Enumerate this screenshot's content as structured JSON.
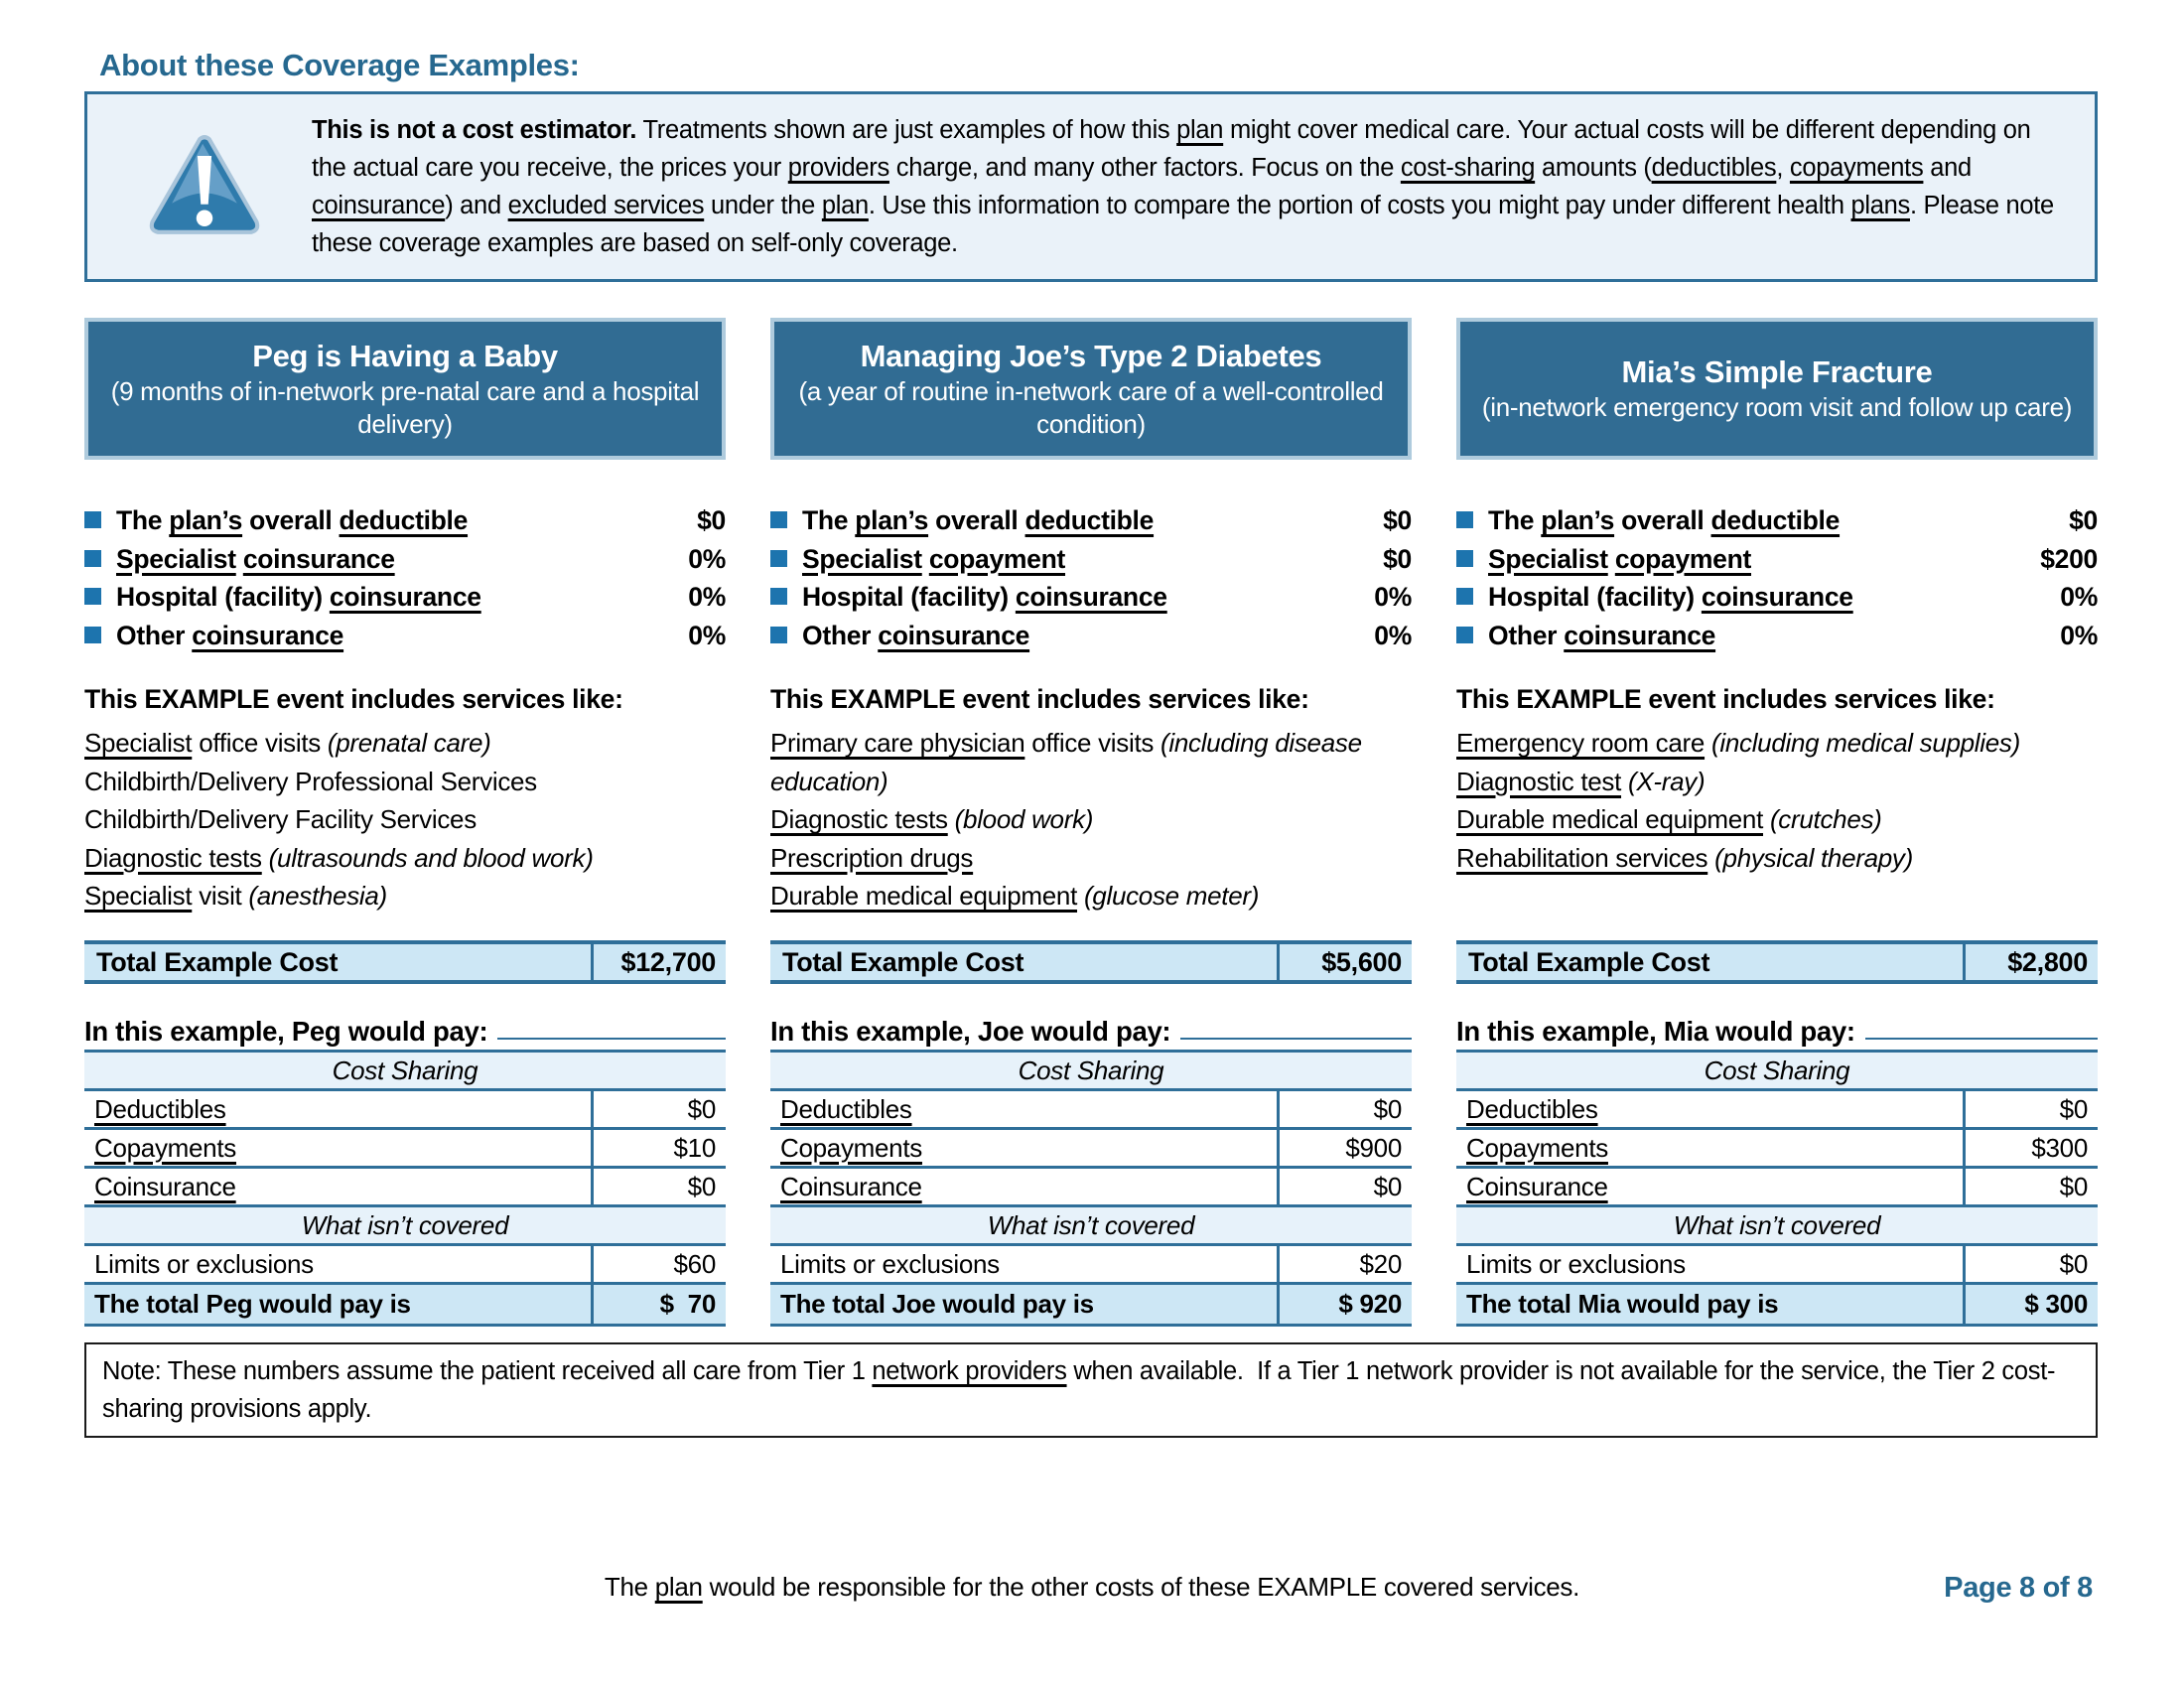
{
  "heading": "About these Coverage Examples:",
  "colors": {
    "accent_blue": "#2F6F99",
    "band_blue": "#316C93",
    "band_border": "#AFCBDD",
    "light_row_blue": "#CDE7F5",
    "section_row_blue": "#E7F2FA",
    "bullet_blue": "#1D74AE",
    "heading_blue": "#26688F",
    "warning_bg": "#EAF2F9"
  },
  "disclaimer": {
    "icon": "warning-triangle-icon",
    "segments": [
      {
        "t": "This is not a cost estimator.",
        "b": true
      },
      {
        "t": " Treatments shown are just examples of how this "
      },
      {
        "t": "plan",
        "u": true
      },
      {
        "t": " might cover medical care. Your actual costs will be different depending on the actual care you receive, the prices your "
      },
      {
        "t": "providers",
        "u": true
      },
      {
        "t": " charge, and many other factors. Focus on the "
      },
      {
        "t": "cost-sharing",
        "u": true
      },
      {
        "t": " amounts ("
      },
      {
        "t": "deductibles",
        "u": true
      },
      {
        "t": ", "
      },
      {
        "t": "copayments",
        "u": true
      },
      {
        "t": " and "
      },
      {
        "t": "coinsurance",
        "u": true
      },
      {
        "t": ") and "
      },
      {
        "t": "excluded services",
        "u": true
      },
      {
        "t": " under the "
      },
      {
        "t": "plan",
        "u": true
      },
      {
        "t": ". Use this information to compare the portion of costs you might pay under different health "
      },
      {
        "t": "plans",
        "u": true
      },
      {
        "t": ". Please note these coverage examples are based on self-only coverage."
      }
    ]
  },
  "examples": [
    {
      "title": "Peg is Having a Baby",
      "subtitle": "(9 months of in-network pre-natal care and a hospital delivery)",
      "plan_parameters": [
        {
          "label_segments": [
            {
              "t": "The "
            },
            {
              "t": "plan’s",
              "u": true
            },
            {
              "t": " overall "
            },
            {
              "t": "deductible",
              "u": true
            }
          ],
          "value": "$0"
        },
        {
          "label_segments": [
            {
              "t": "Specialist",
              "u": true
            },
            {
              "t": " "
            },
            {
              "t": "coinsurance",
              "u": true
            }
          ],
          "value": "0%"
        },
        {
          "label_segments": [
            {
              "t": "Hospital (facility) "
            },
            {
              "t": "coinsurance",
              "u": true
            }
          ],
          "value": "0%"
        },
        {
          "label_segments": [
            {
              "t": "Other "
            },
            {
              "t": "coinsurance",
              "u": true
            }
          ],
          "value": "0%"
        }
      ],
      "services_heading": "This EXAMPLE event includes services like:",
      "services": [
        {
          "segments": [
            {
              "t": "Specialist",
              "u": true
            },
            {
              "t": " office visits "
            },
            {
              "t": "(prenatal care)",
              "i": true
            }
          ]
        },
        {
          "segments": [
            {
              "t": "Childbirth/Delivery Professional Services"
            }
          ]
        },
        {
          "segments": [
            {
              "t": "Childbirth/Delivery Facility Services"
            }
          ]
        },
        {
          "segments": [
            {
              "t": "Diagnostic tests",
              "u": true
            },
            {
              "t": " "
            },
            {
              "t": "(ultrasounds and blood work)",
              "i": true
            }
          ]
        },
        {
          "segments": [
            {
              "t": "Specialist",
              "u": true
            },
            {
              "t": " visit "
            },
            {
              "t": "(anesthesia)",
              "i": true
            }
          ]
        }
      ],
      "total_label": "Total Example Cost",
      "total_value": "$12,700",
      "would_pay_heading": "In this example, Peg would pay:",
      "pay_table": [
        {
          "type": "section",
          "label": "Cost Sharing"
        },
        {
          "type": "row",
          "label": "Deductibles",
          "underline": true,
          "value": "$0"
        },
        {
          "type": "row",
          "label": "Copayments",
          "underline": true,
          "value": "$10"
        },
        {
          "type": "row",
          "label": "Coinsurance",
          "underline": true,
          "value": "$0"
        },
        {
          "type": "section",
          "label": "What isn’t covered"
        },
        {
          "type": "row",
          "label": "Limits or exclusions",
          "underline": false,
          "value": "$60"
        },
        {
          "type": "total",
          "label": "The total Peg would pay is",
          "value": "$  70"
        }
      ]
    },
    {
      "title": "Managing Joe’s Type 2 Diabetes",
      "subtitle": "(a year of routine in-network care of a well-controlled condition)",
      "plan_parameters": [
        {
          "label_segments": [
            {
              "t": "The "
            },
            {
              "t": "plan’s",
              "u": true
            },
            {
              "t": " overall "
            },
            {
              "t": "deductible",
              "u": true
            }
          ],
          "value": "$0"
        },
        {
          "label_segments": [
            {
              "t": "Specialist",
              "u": true
            },
            {
              "t": " "
            },
            {
              "t": "copayment",
              "u": true
            }
          ],
          "value": "$0"
        },
        {
          "label_segments": [
            {
              "t": "Hospital (facility) "
            },
            {
              "t": "coinsurance",
              "u": true
            }
          ],
          "value": "0%"
        },
        {
          "label_segments": [
            {
              "t": "Other "
            },
            {
              "t": "coinsurance",
              "u": true
            }
          ],
          "value": "0%"
        }
      ],
      "services_heading": "This EXAMPLE event includes services like:",
      "services": [
        {
          "segments": [
            {
              "t": "Primary care physician",
              "u": true
            },
            {
              "t": " office visits "
            },
            {
              "t": "(including disease education)",
              "i": true
            }
          ]
        },
        {
          "segments": [
            {
              "t": "Diagnostic tests",
              "u": true
            },
            {
              "t": " "
            },
            {
              "t": "(blood work)",
              "i": true
            }
          ]
        },
        {
          "segments": [
            {
              "t": "Prescription drugs",
              "u": true
            }
          ]
        },
        {
          "segments": [
            {
              "t": "Durable medical equipment",
              "u": true
            },
            {
              "t": " "
            },
            {
              "t": "(glucose meter)",
              "i": true
            }
          ]
        }
      ],
      "total_label": "Total Example Cost",
      "total_value": "$5,600",
      "would_pay_heading": "In this example, Joe would pay:",
      "pay_table": [
        {
          "type": "section",
          "label": "Cost Sharing"
        },
        {
          "type": "row",
          "label": "Deductibles",
          "underline": true,
          "value": "$0"
        },
        {
          "type": "row",
          "label": "Copayments",
          "underline": true,
          "value": "$900"
        },
        {
          "type": "row",
          "label": "Coinsurance",
          "underline": true,
          "value": "$0"
        },
        {
          "type": "section",
          "label": "What isn’t covered"
        },
        {
          "type": "row",
          "label": "Limits or exclusions",
          "underline": false,
          "value": "$20"
        },
        {
          "type": "total",
          "label": "The total Joe would pay is",
          "value": "$ 920"
        }
      ]
    },
    {
      "title": "Mia’s Simple Fracture",
      "subtitle": "(in-network emergency room visit and follow up care)",
      "plan_parameters": [
        {
          "label_segments": [
            {
              "t": "The "
            },
            {
              "t": "plan’s",
              "u": true
            },
            {
              "t": " overall "
            },
            {
              "t": "deductible",
              "u": true
            }
          ],
          "value": "$0"
        },
        {
          "label_segments": [
            {
              "t": "Specialist",
              "u": true
            },
            {
              "t": " "
            },
            {
              "t": "copayment",
              "u": true
            }
          ],
          "value": "$200"
        },
        {
          "label_segments": [
            {
              "t": "Hospital (facility) "
            },
            {
              "t": "coinsurance",
              "u": true
            }
          ],
          "value": "0%"
        },
        {
          "label_segments": [
            {
              "t": "Other "
            },
            {
              "t": "coinsurance",
              "u": true
            }
          ],
          "value": "0%"
        }
      ],
      "services_heading": "This EXAMPLE event includes services like:",
      "services": [
        {
          "segments": [
            {
              "t": "Emergency room care",
              "u": true
            },
            {
              "t": " "
            },
            {
              "t": "(including medical supplies)",
              "i": true
            }
          ]
        },
        {
          "segments": [
            {
              "t": "Diagnostic test",
              "u": true
            },
            {
              "t": " "
            },
            {
              "t": "(X-ray)",
              "i": true
            }
          ]
        },
        {
          "segments": [
            {
              "t": "Durable medical equipment",
              "u": true
            },
            {
              "t": " "
            },
            {
              "t": "(crutches)",
              "i": true
            }
          ]
        },
        {
          "segments": [
            {
              "t": "Rehabilitation services",
              "u": true
            },
            {
              "t": " "
            },
            {
              "t": "(physical therapy)",
              "i": true
            }
          ]
        }
      ],
      "total_label": "Total Example Cost",
      "total_value": "$2,800",
      "would_pay_heading": "In this example, Mia would pay:",
      "pay_table": [
        {
          "type": "section",
          "label": "Cost Sharing"
        },
        {
          "type": "row",
          "label": "Deductibles",
          "underline": true,
          "value": "$0"
        },
        {
          "type": "row",
          "label": "Copayments",
          "underline": true,
          "value": "$300"
        },
        {
          "type": "row",
          "label": "Coinsurance",
          "underline": true,
          "value": "$0"
        },
        {
          "type": "section",
          "label": "What isn’t covered"
        },
        {
          "type": "row",
          "label": "Limits or exclusions",
          "underline": false,
          "value": "$0"
        },
        {
          "type": "total",
          "label": "The total Mia would pay is",
          "value": "$ 300"
        }
      ]
    }
  ],
  "note": {
    "segments": [
      {
        "t": "Note: These numbers assume the patient received all care from Tier 1 "
      },
      {
        "t": "network providers",
        "u": true
      },
      {
        "t": " when available.  If a Tier 1 network provider is not available for the service, the Tier 2 cost-sharing provisions apply."
      }
    ]
  },
  "footer": {
    "segments": [
      {
        "t": "The "
      },
      {
        "t": "plan",
        "u": true
      },
      {
        "t": " would be responsible for the other costs of these EXAMPLE covered services."
      }
    ],
    "page_label": "Page 8 of 8"
  }
}
